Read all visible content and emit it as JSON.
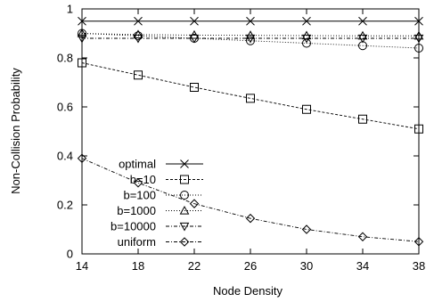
{
  "chart_data": {
    "type": "line",
    "xlabel": "Node Density",
    "ylabel": "Non-Collision Probability",
    "xlim": [
      14,
      38
    ],
    "ylim": [
      0,
      1
    ],
    "x_ticks": [
      14,
      18,
      22,
      26,
      30,
      34,
      38
    ],
    "y_ticks": [
      0,
      0.2,
      0.4,
      0.6,
      0.8,
      1
    ],
    "x_tick_labels": [
      "14",
      "18",
      "22",
      "26",
      "30",
      "34",
      "38"
    ],
    "y_tick_labels": [
      "0",
      "0.2",
      "0.4",
      "0.6",
      "0.8",
      "1"
    ],
    "grid": false,
    "legend_position": "bottom-left",
    "series": [
      {
        "name": "optimal",
        "marker": "x",
        "dash": "solid",
        "x": [
          14,
          18,
          22,
          26,
          30,
          34,
          38
        ],
        "y": [
          0.95,
          0.95,
          0.95,
          0.95,
          0.95,
          0.95,
          0.95
        ]
      },
      {
        "name": "b=10",
        "marker": "square",
        "dash": "dashed",
        "x": [
          14,
          18,
          22,
          26,
          30,
          34,
          38
        ],
        "y": [
          0.78,
          0.73,
          0.68,
          0.635,
          0.59,
          0.55,
          0.51
        ]
      },
      {
        "name": "b=100",
        "marker": "circle",
        "dash": "dotted",
        "x": [
          14,
          18,
          22,
          26,
          30,
          34,
          38
        ],
        "y": [
          0.9,
          0.89,
          0.88,
          0.87,
          0.86,
          0.85,
          0.84
        ]
      },
      {
        "name": "b=1000",
        "marker": "triangle-up",
        "dash": "dotted",
        "x": [
          14,
          18,
          22,
          26,
          30,
          34,
          38
        ],
        "y": [
          0.9,
          0.895,
          0.893,
          0.892,
          0.891,
          0.89,
          0.89
        ]
      },
      {
        "name": "b=10000",
        "marker": "triangle-down",
        "dash": "dashdot",
        "x": [
          14,
          18,
          22,
          26,
          30,
          34,
          38
        ],
        "y": [
          0.88,
          0.88,
          0.88,
          0.88,
          0.88,
          0.88,
          0.88
        ]
      },
      {
        "name": "uniform",
        "marker": "diamond",
        "dash": "dashdot",
        "x": [
          14,
          18,
          22,
          26,
          30,
          34,
          38
        ],
        "y": [
          0.39,
          0.29,
          0.205,
          0.145,
          0.1,
          0.07,
          0.05
        ]
      }
    ]
  }
}
